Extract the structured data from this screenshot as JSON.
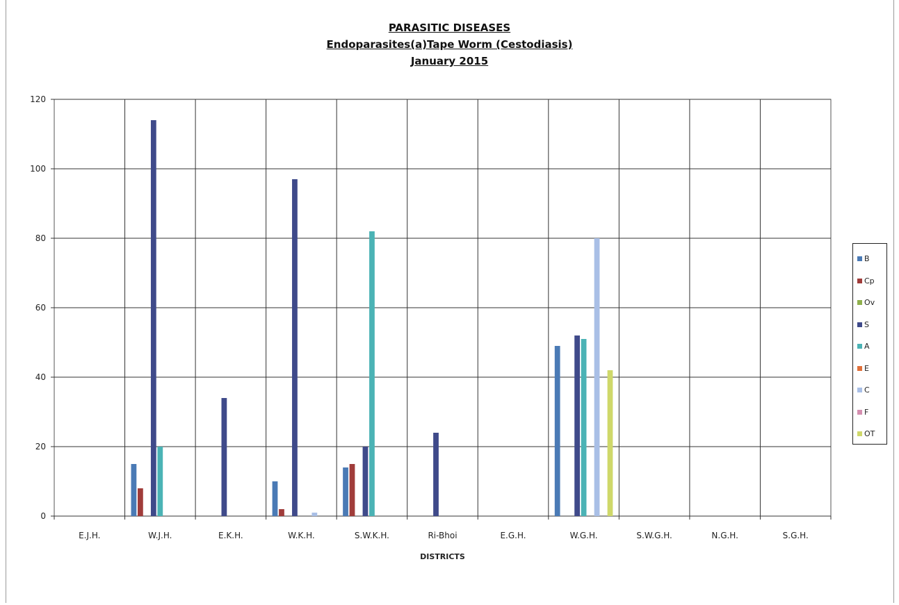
{
  "chart_data": {
    "type": "bar",
    "title": "PARASITIC DISEASES",
    "subtitle": "Endoparasites(a)Tape Worm (Cestodiasis)",
    "period": "January 2015",
    "xlabel": "DISTRICTS",
    "ylabel": "",
    "ylim": [
      0,
      120
    ],
    "yticks": [
      "0",
      "20",
      "40",
      "60",
      "80",
      "100",
      "120"
    ],
    "grid": true,
    "legend_position": "right",
    "categories": [
      "E.J.H.",
      "W.J.H.",
      "E.K.H.",
      "W.K.H.",
      "S.W.K.H.",
      "Ri-Bhoi",
      "E.G.H.",
      "W.G.H.",
      "S.W.G.H.",
      "N.G.H.",
      "S.G.H."
    ],
    "series": [
      {
        "name": "B",
        "color": "#4a7ab5",
        "values": [
          0,
          15,
          0,
          10,
          14,
          0,
          0,
          49,
          0,
          0,
          0
        ]
      },
      {
        "name": "Cp",
        "color": "#a03c3a",
        "values": [
          0,
          8,
          0,
          2,
          15,
          0,
          0,
          0,
          0,
          0,
          0
        ]
      },
      {
        "name": "Ov",
        "color": "#8fb04d",
        "values": [
          0,
          0,
          0,
          0,
          0,
          0,
          0,
          0,
          0,
          0,
          0
        ]
      },
      {
        "name": "S",
        "color": "#3f4a8a",
        "values": [
          0,
          114,
          34,
          97,
          20,
          24,
          0,
          52,
          0,
          0,
          0
        ]
      },
      {
        "name": "A",
        "color": "#4bb3b5",
        "values": [
          0,
          20,
          0,
          0,
          82,
          0,
          0,
          51,
          0,
          0,
          0
        ]
      },
      {
        "name": "E",
        "color": "#e0703a",
        "values": [
          0,
          0,
          0,
          0,
          0,
          0,
          0,
          0,
          0,
          0,
          0
        ]
      },
      {
        "name": "C",
        "color": "#a9bfe6",
        "values": [
          0,
          0,
          0,
          1,
          0,
          0,
          0,
          80,
          0,
          0,
          0
        ]
      },
      {
        "name": "F",
        "color": "#d58fb0",
        "values": [
          0,
          0,
          0,
          0,
          0,
          0,
          0,
          0,
          0,
          0,
          0
        ]
      },
      {
        "name": "OT",
        "color": "#cfd86a",
        "values": [
          0,
          0,
          0,
          0,
          0,
          0,
          0,
          42,
          0,
          0,
          0
        ]
      }
    ]
  }
}
